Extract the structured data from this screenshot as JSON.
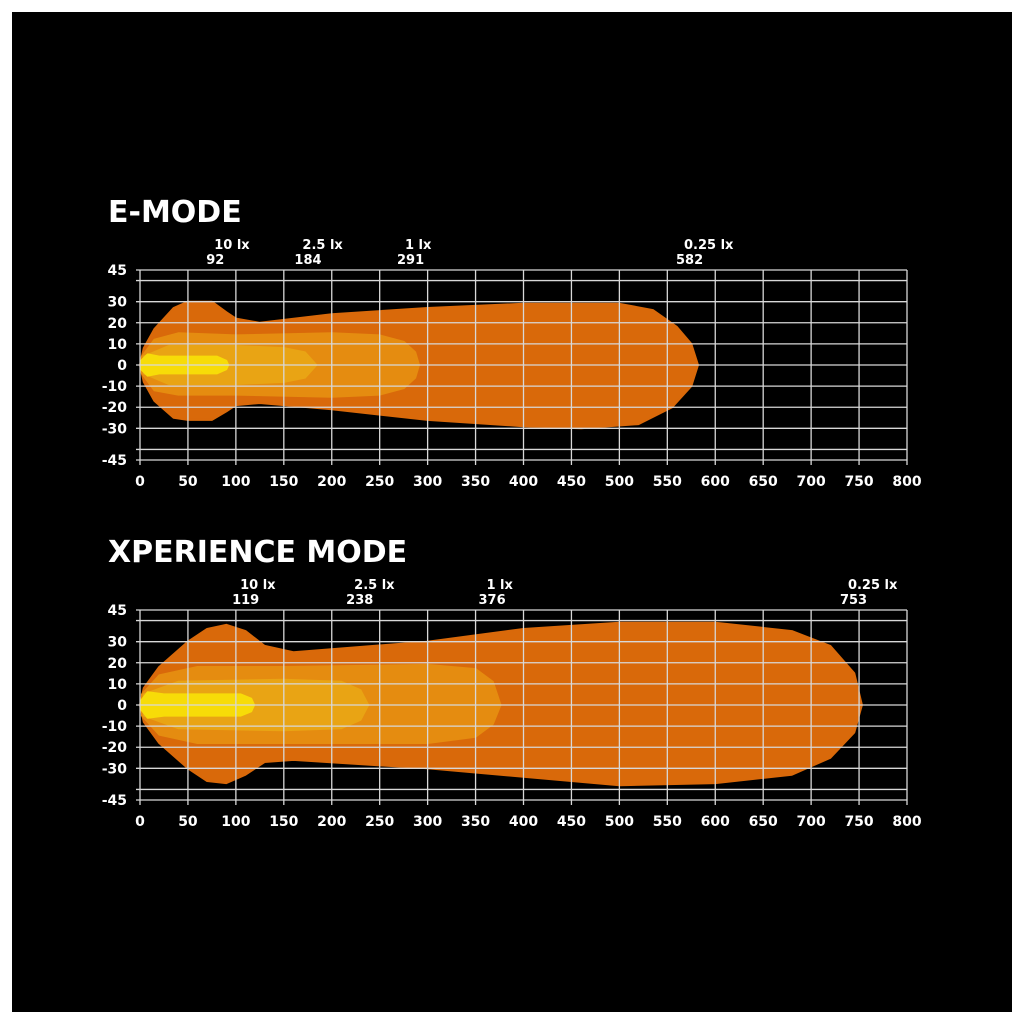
{
  "chart_data": [
    {
      "type": "area",
      "title": "E-MODE",
      "xlim": [
        0,
        800
      ],
      "ylim": [
        -45,
        45
      ],
      "x_ticks": [
        0,
        50,
        100,
        150,
        200,
        250,
        300,
        350,
        400,
        450,
        500,
        550,
        600,
        650,
        700,
        750,
        800
      ],
      "y_ticks": [
        45,
        30,
        20,
        10,
        0,
        -10,
        -20,
        -30,
        -45
      ],
      "grid": true,
      "annotations": [
        {
          "label": "10 lx",
          "value": "92",
          "x": 92
        },
        {
          "label": "2.5 lx",
          "value": "184",
          "x": 184
        },
        {
          "label": "1 lx",
          "value": "291",
          "x": 291
        },
        {
          "label": "0.25 lx",
          "value": "582",
          "x": 582
        }
      ],
      "contours": [
        {
          "level": "0.25 lx",
          "reach": 582,
          "color": "#d9690a",
          "upper": [
            [
              0,
              0
            ],
            [
              4,
              8
            ],
            [
              15,
              17
            ],
            [
              35,
              27
            ],
            [
              50,
              30
            ],
            [
              75,
              30
            ],
            [
              90,
              25
            ],
            [
              100,
              22
            ],
            [
              125,
              20
            ],
            [
              200,
              24
            ],
            [
              300,
              27
            ],
            [
              400,
              29
            ],
            [
              500,
              29
            ],
            [
              535,
              26
            ],
            [
              560,
              18
            ],
            [
              575,
              10
            ],
            [
              582,
              0
            ]
          ],
          "lower": [
            [
              0,
              0
            ],
            [
              4,
              -8
            ],
            [
              15,
              -17
            ],
            [
              35,
              -25
            ],
            [
              50,
              -26
            ],
            [
              75,
              -26
            ],
            [
              90,
              -22
            ],
            [
              100,
              -19
            ],
            [
              125,
              -18
            ],
            [
              200,
              -21
            ],
            [
              300,
              -26
            ],
            [
              400,
              -29
            ],
            [
              460,
              -30
            ],
            [
              520,
              -28
            ],
            [
              555,
              -20
            ],
            [
              575,
              -10
            ],
            [
              582,
              0
            ]
          ]
        },
        {
          "level": "1 lx",
          "reach": 291,
          "color": "#e58c10",
          "upper": [
            [
              2,
              4
            ],
            [
              15,
              12
            ],
            [
              40,
              15
            ],
            [
              100,
              14
            ],
            [
              200,
              15
            ],
            [
              250,
              14
            ],
            [
              275,
              11
            ],
            [
              287,
              6
            ],
            [
              291,
              0
            ]
          ],
          "lower": [
            [
              2,
              -4
            ],
            [
              15,
              -12
            ],
            [
              40,
              -14
            ],
            [
              100,
              -14
            ],
            [
              200,
              -15
            ],
            [
              250,
              -14
            ],
            [
              275,
              -11
            ],
            [
              287,
              -6
            ],
            [
              291,
              0
            ]
          ]
        },
        {
          "level": "2.5 lx",
          "reach": 184,
          "color": "#e9a414",
          "upper": [
            [
              4,
              4
            ],
            [
              30,
              9
            ],
            [
              100,
              9
            ],
            [
              150,
              8
            ],
            [
              172,
              6
            ],
            [
              184,
              0
            ]
          ],
          "lower": [
            [
              4,
              -4
            ],
            [
              30,
              -9
            ],
            [
              100,
              -9
            ],
            [
              150,
              -8
            ],
            [
              172,
              -6
            ],
            [
              184,
              0
            ]
          ]
        },
        {
          "level": "10 lx",
          "reach": 92,
          "color": "#f7dc08",
          "upper": [
            [
              1,
              2
            ],
            [
              8,
              5
            ],
            [
              20,
              4
            ],
            [
              35,
              4
            ],
            [
              80,
              4
            ],
            [
              90,
              2
            ],
            [
              92,
              0
            ]
          ],
          "lower": [
            [
              1,
              -2
            ],
            [
              8,
              -5
            ],
            [
              20,
              -4
            ],
            [
              35,
              -4
            ],
            [
              80,
              -4
            ],
            [
              90,
              -2
            ],
            [
              92,
              0
            ]
          ]
        }
      ]
    },
    {
      "type": "area",
      "title": "XPERIENCE MODE",
      "xlim": [
        0,
        800
      ],
      "ylim": [
        -45,
        45
      ],
      "x_ticks": [
        0,
        50,
        100,
        150,
        200,
        250,
        300,
        350,
        400,
        450,
        500,
        550,
        600,
        650,
        700,
        750,
        800
      ],
      "y_ticks": [
        45,
        30,
        20,
        10,
        0,
        -10,
        -20,
        -30,
        -45
      ],
      "grid": true,
      "annotations": [
        {
          "label": "10 lx",
          "value": "119",
          "x": 119
        },
        {
          "label": "2.5 lx",
          "value": "238",
          "x": 238
        },
        {
          "label": "1 lx",
          "value": "376",
          "x": 376
        },
        {
          "label": "0.25 lx",
          "value": "753",
          "x": 753
        }
      ],
      "contours": [
        {
          "level": "0.25 lx",
          "reach": 753,
          "color": "#d9690a",
          "upper": [
            [
              0,
              0
            ],
            [
              4,
              8
            ],
            [
              20,
              18
            ],
            [
              50,
              30
            ],
            [
              70,
              36
            ],
            [
              90,
              38
            ],
            [
              110,
              35
            ],
            [
              130,
              28
            ],
            [
              160,
              25
            ],
            [
              300,
              30
            ],
            [
              400,
              36
            ],
            [
              500,
              39
            ],
            [
              600,
              39
            ],
            [
              680,
              35
            ],
            [
              720,
              28
            ],
            [
              745,
              15
            ],
            [
              753,
              0
            ]
          ],
          "lower": [
            [
              0,
              0
            ],
            [
              4,
              -8
            ],
            [
              20,
              -18
            ],
            [
              50,
              -30
            ],
            [
              70,
              -36
            ],
            [
              90,
              -37
            ],
            [
              110,
              -33
            ],
            [
              130,
              -27
            ],
            [
              160,
              -26
            ],
            [
              300,
              -30
            ],
            [
              400,
              -34
            ],
            [
              500,
              -38
            ],
            [
              600,
              -37
            ],
            [
              680,
              -33
            ],
            [
              720,
              -25
            ],
            [
              745,
              -13
            ],
            [
              753,
              0
            ]
          ]
        },
        {
          "level": "1 lx",
          "reach": 376,
          "color": "#e58c10",
          "upper": [
            [
              2,
              5
            ],
            [
              20,
              14
            ],
            [
              60,
              18
            ],
            [
              150,
              18
            ],
            [
              300,
              19
            ],
            [
              350,
              17
            ],
            [
              368,
              11
            ],
            [
              376,
              0
            ]
          ],
          "lower": [
            [
              2,
              -5
            ],
            [
              20,
              -14
            ],
            [
              60,
              -18
            ],
            [
              150,
              -18
            ],
            [
              300,
              -18
            ],
            [
              350,
              -15
            ],
            [
              368,
              -9
            ],
            [
              376,
              0
            ]
          ]
        },
        {
          "level": "2.5 lx",
          "reach": 238,
          "color": "#e9a414",
          "upper": [
            [
              4,
              5
            ],
            [
              40,
              11
            ],
            [
              150,
              12
            ],
            [
              210,
              11
            ],
            [
              230,
              7
            ],
            [
              238,
              0
            ]
          ],
          "lower": [
            [
              4,
              -5
            ],
            [
              40,
              -11
            ],
            [
              150,
              -12
            ],
            [
              210,
              -11
            ],
            [
              230,
              -7
            ],
            [
              238,
              0
            ]
          ]
        },
        {
          "level": "10 lx",
          "reach": 119,
          "color": "#f7dc08",
          "upper": [
            [
              1,
              2
            ],
            [
              8,
              6
            ],
            [
              25,
              5
            ],
            [
              50,
              5
            ],
            [
              105,
              5
            ],
            [
              116,
              3
            ],
            [
              119,
              0
            ]
          ],
          "lower": [
            [
              1,
              -2
            ],
            [
              8,
              -6
            ],
            [
              25,
              -5
            ],
            [
              50,
              -5
            ],
            [
              105,
              -5
            ],
            [
              116,
              -3
            ],
            [
              119,
              0
            ]
          ]
        }
      ]
    }
  ],
  "colors": {
    "background": "#000000",
    "grid": "#d8d8d8",
    "text": "#ffffff"
  }
}
